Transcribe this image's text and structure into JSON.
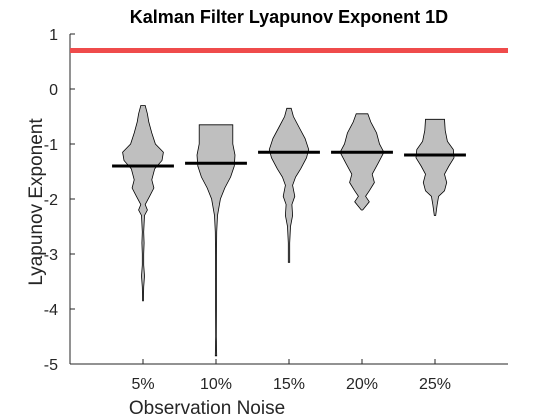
{
  "chart_data": {
    "type": "violin",
    "title": "Kalman Filter Lyapunov Exponent 1D",
    "xlabel": "Observation Noise",
    "ylabel": "Lyapunov Exponent",
    "ylim": [
      -5,
      1
    ],
    "yticks": [
      1,
      0,
      -1,
      -2,
      -3,
      -4,
      -5
    ],
    "xlim": [
      0,
      6
    ],
    "categories": [
      "5%",
      "10%",
      "15%",
      "20%",
      "25%"
    ],
    "reference_line": {
      "y": 0.7,
      "color": "#ef4b4b"
    },
    "series": [
      {
        "category": "5%",
        "median": -1.4,
        "min": -3.85,
        "max": -0.3,
        "profile": [
          [
            -0.3,
            0.03
          ],
          [
            -0.45,
            0.06
          ],
          [
            -0.6,
            0.08
          ],
          [
            -0.8,
            0.12
          ],
          [
            -1.0,
            0.17
          ],
          [
            -1.15,
            0.28
          ],
          [
            -1.3,
            0.26
          ],
          [
            -1.45,
            0.16
          ],
          [
            -1.65,
            0.12
          ],
          [
            -1.8,
            0.15
          ],
          [
            -1.95,
            0.09
          ],
          [
            -2.1,
            0.03
          ],
          [
            -2.2,
            0.06
          ],
          [
            -2.3,
            0.02
          ],
          [
            -2.6,
            0.01
          ],
          [
            -2.8,
            0.015
          ],
          [
            -3.0,
            0.01
          ],
          [
            -3.2,
            0.01
          ],
          [
            -3.4,
            0.02
          ],
          [
            -3.6,
            0.01
          ],
          [
            -3.85,
            0.005
          ]
        ]
      },
      {
        "category": "10%",
        "median": -1.35,
        "min": -4.85,
        "max": -0.65,
        "profile": [
          [
            -0.65,
            0.23
          ],
          [
            -0.8,
            0.23
          ],
          [
            -1.0,
            0.23
          ],
          [
            -1.2,
            0.26
          ],
          [
            -1.4,
            0.25
          ],
          [
            -1.6,
            0.2
          ],
          [
            -1.8,
            0.12
          ],
          [
            -2.0,
            0.06
          ],
          [
            -2.3,
            0.02
          ],
          [
            -2.6,
            0.01
          ],
          [
            -3.0,
            0.007
          ],
          [
            -3.5,
            0.006
          ],
          [
            -4.0,
            0.005
          ],
          [
            -4.5,
            0.004
          ],
          [
            -4.85,
            0.01
          ]
        ]
      },
      {
        "category": "15%",
        "median": -1.15,
        "min": -3.15,
        "max": -0.35,
        "profile": [
          [
            -0.35,
            0.03
          ],
          [
            -0.5,
            0.06
          ],
          [
            -0.7,
            0.14
          ],
          [
            -0.9,
            0.22
          ],
          [
            -1.1,
            0.27
          ],
          [
            -1.25,
            0.24
          ],
          [
            -1.45,
            0.16
          ],
          [
            -1.6,
            0.09
          ],
          [
            -1.75,
            0.05
          ],
          [
            -1.95,
            0.08
          ],
          [
            -2.1,
            0.04
          ],
          [
            -2.3,
            0.05
          ],
          [
            -2.5,
            0.02
          ],
          [
            -2.8,
            0.01
          ],
          [
            -3.15,
            0.01
          ]
        ]
      },
      {
        "category": "20%",
        "median": -1.15,
        "min": -2.2,
        "max": -0.45,
        "profile": [
          [
            -0.45,
            0.08
          ],
          [
            -0.6,
            0.12
          ],
          [
            -0.8,
            0.2
          ],
          [
            -1.0,
            0.24
          ],
          [
            -1.15,
            0.3
          ],
          [
            -1.35,
            0.22
          ],
          [
            -1.55,
            0.14
          ],
          [
            -1.7,
            0.17
          ],
          [
            -1.85,
            0.1
          ],
          [
            -1.95,
            0.05
          ],
          [
            -2.05,
            0.1
          ],
          [
            -2.2,
            0.01
          ]
        ]
      },
      {
        "category": "25%",
        "median": -1.2,
        "min": -2.3,
        "max": -0.55,
        "profile": [
          [
            -0.55,
            0.13
          ],
          [
            -0.75,
            0.14
          ],
          [
            -0.95,
            0.17
          ],
          [
            -1.1,
            0.25
          ],
          [
            -1.25,
            0.26
          ],
          [
            -1.4,
            0.19
          ],
          [
            -1.55,
            0.13
          ],
          [
            -1.7,
            0.16
          ],
          [
            -1.85,
            0.13
          ],
          [
            -1.95,
            0.05
          ],
          [
            -2.1,
            0.03
          ],
          [
            -2.3,
            0.01
          ]
        ]
      }
    ]
  }
}
